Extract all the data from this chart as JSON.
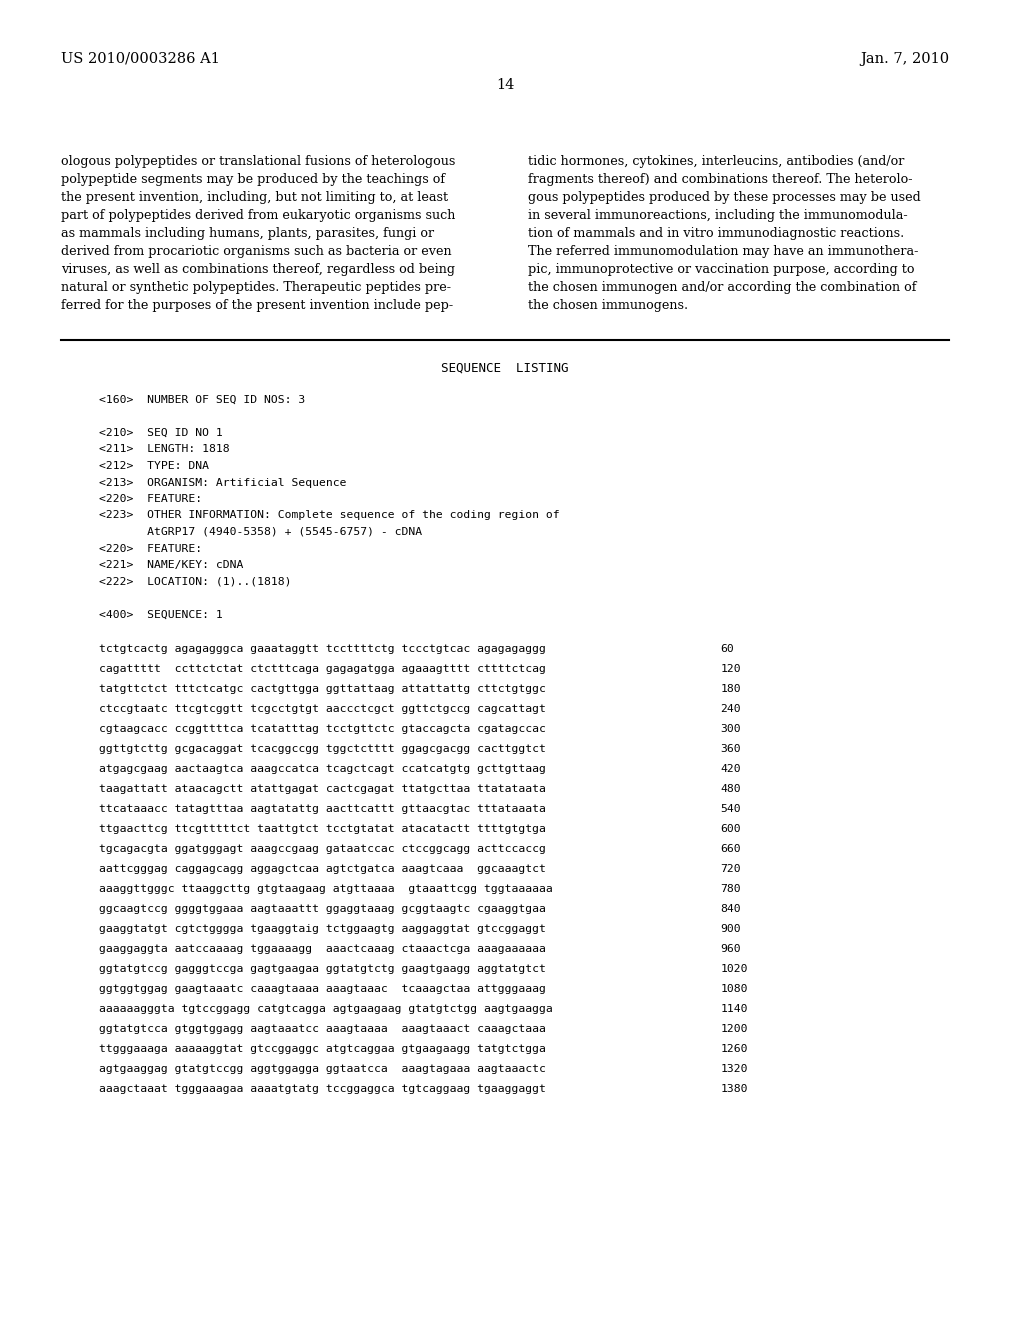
{
  "bg_color": "#ffffff",
  "header_left": "US 2010/0003286 A1",
  "header_right": "Jan. 7, 2010",
  "page_number": "14",
  "left_col_text": [
    "ologous polypeptides or translational fusions of heterologous",
    "polypeptide segments may be produced by the teachings of",
    "the present invention, including, but not limiting to, at least",
    "part of polypeptides derived from eukaryotic organisms such",
    "as mammals including humans, plants, parasites, fungi or",
    "derived from procariotic organisms such as bacteria or even",
    "viruses, as well as combinations thereof, regardless od being",
    "natural or synthetic polypeptides. Therapeutic peptides pre-",
    "ferred for the purposes of the present invention include pep-"
  ],
  "right_col_text": [
    "tidic hormones, cytokines, interleucins, antibodies (and/or",
    "fragments thereof) and combinations thereof. The heterolo-",
    "gous polypeptides produced by these processes may be used",
    "in several immunoreactions, including the immunomodula-",
    "tion of mammals and in vitro immunodiagnostic reactions.",
    "The referred immunomodulation may have an immunothera-",
    "pic, immunoprotective or vaccination purpose, according to",
    "the chosen immunogen and/or according the combination of",
    "the chosen immunogens."
  ],
  "seq_listing_title": "SEQUENCE  LISTING",
  "seq_metadata": [
    "<160>  NUMBER OF SEQ ID NOS: 3",
    "",
    "<210>  SEQ ID NO 1",
    "<211>  LENGTH: 1818",
    "<212>  TYPE: DNA",
    "<213>  ORGANISM: Artificial Sequence",
    "<220>  FEATURE:",
    "<223>  OTHER INFORMATION: Complete sequence of the coding region of",
    "       AtGRP17 (4940-5358) + (5545-6757) - cDNA",
    "<220>  FEATURE:",
    "<221>  NAME/KEY: cDNA",
    "<222>  LOCATION: (1)..(1818)",
    "",
    "<400>  SEQUENCE: 1"
  ],
  "seq_lines": [
    [
      "tctgtcactg agagagggca gaaataggtt tccttttctg tccctgtcac agagagaggg",
      "60"
    ],
    [
      "cagattttt  ccttctctat ctctttcaga gagagatgga agaaagtttt cttttctcag",
      "120"
    ],
    [
      "tatgttctct tttctcatgc cactgttgga ggttattaag attattattg cttctgtggc",
      "180"
    ],
    [
      "ctccgtaatc ttcgtcggtt tcgcctgtgt aaccctcgct ggttctgccg cagcattagt",
      "240"
    ],
    [
      "cgtaagcacc ccggttttca tcatatttag tcctgttctc gtaccagcta cgatagccac",
      "300"
    ],
    [
      "ggttgtcttg gcgacaggat tcacggccgg tggctctttt ggagcgacgg cacttggtct",
      "360"
    ],
    [
      "atgagcgaag aactaagtca aaagccatca tcagctcagt ccatcatgtg gcttgttaag",
      "420"
    ],
    [
      "taagattatt ataacagctt atattgagat cactcgagat ttatgcttaa ttatataata",
      "480"
    ],
    [
      "ttcataaacc tatagtttaa aagtatattg aacttcattt gttaacgtac tttataaata",
      "540"
    ],
    [
      "ttgaacttcg ttcgtttttct taattgtct tcctgtatat atacatactt ttttgtgtga",
      "600"
    ],
    [
      "tgcagacgta ggatgggagt aaagccgaag gataatccac ctccggcagg acttccaccg",
      "660"
    ],
    [
      "aattcgggag caggagcagg aggagctcaa agtctgatca aaagtcaaa  ggcaaagtct",
      "720"
    ],
    [
      "aaaggttgggc ttaaggcttg gtgtaagaag atgttaaaa  gtaaattcgg tggtaaaaaa",
      "780"
    ],
    [
      "ggcaagtccg ggggtggaaa aagtaaattt ggaggtaaag gcggtaagtc cgaaggtgaa",
      "840"
    ],
    [
      "gaaggtatgt cgtctgggga tgaaggtaig tctggaagtg aaggaggtat gtccggaggt",
      "900"
    ],
    [
      "gaaggaggta aatccaaaag tggaaaagg  aaactcaaag ctaaactcga aaagaaaaaa",
      "960"
    ],
    [
      "ggtatgtccg gagggtccga gagtgaagaa ggtatgtctg gaagtgaagg aggtatgtct",
      "1020"
    ],
    [
      "ggtggtggag gaagtaaatc caaagtaaaa aaagtaaac  tcaaagctaa attgggaaag",
      "1080"
    ],
    [
      "aaaaaagggta tgtccggagg catgtcagga agtgaagaag gtatgtctgg aagtgaagga",
      "1140"
    ],
    [
      "ggtatgtcca gtggtggagg aagtaaatcc aaagtaaaa  aaagtaaact caaagctaaa",
      "1200"
    ],
    [
      "ttgggaaaga aaaaaggtat gtccggaggc atgtcaggaa gtgaagaagg tatgtctgga",
      "1260"
    ],
    [
      "agtgaaggag gtatgtccgg aggtggagga ggtaatcca  aaagtagaaa aagtaaactc",
      "1320"
    ],
    [
      "aaagctaaat tgggaaagaa aaaatgtatg tccggaggca tgtcaggaag tgaaggaggt",
      "1380"
    ]
  ]
}
